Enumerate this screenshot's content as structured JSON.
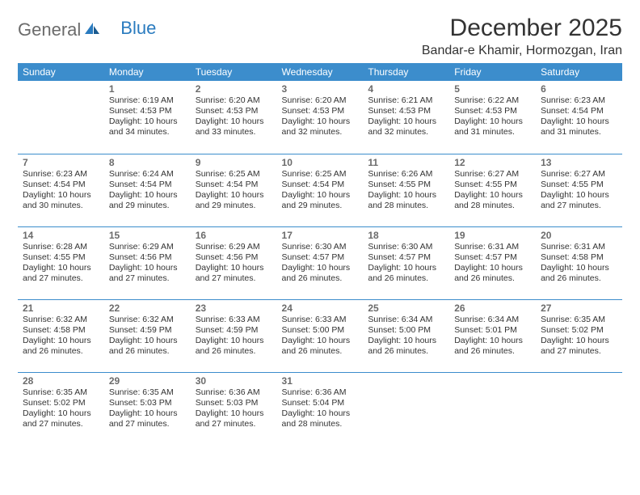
{
  "colors": {
    "header_bg": "#3c8dcc",
    "header_text": "#ffffff",
    "border": "#3c8dcc",
    "daynum": "#6b6b6b",
    "body_text": "#333333",
    "logo_gray": "#6b6b6b",
    "logo_blue": "#2a7bbf",
    "background": "#ffffff"
  },
  "logo": {
    "part1": "General",
    "part2": "Blue"
  },
  "title": "December 2025",
  "location": "Bandar-e Khamir, Hormozgan, Iran",
  "weekdays": [
    "Sunday",
    "Monday",
    "Tuesday",
    "Wednesday",
    "Thursday",
    "Friday",
    "Saturday"
  ],
  "start_offset": 1,
  "days": [
    {
      "n": "1",
      "sunrise": "Sunrise: 6:19 AM",
      "sunset": "Sunset: 4:53 PM",
      "day1": "Daylight: 10 hours",
      "day2": "and 34 minutes."
    },
    {
      "n": "2",
      "sunrise": "Sunrise: 6:20 AM",
      "sunset": "Sunset: 4:53 PM",
      "day1": "Daylight: 10 hours",
      "day2": "and 33 minutes."
    },
    {
      "n": "3",
      "sunrise": "Sunrise: 6:20 AM",
      "sunset": "Sunset: 4:53 PM",
      "day1": "Daylight: 10 hours",
      "day2": "and 32 minutes."
    },
    {
      "n": "4",
      "sunrise": "Sunrise: 6:21 AM",
      "sunset": "Sunset: 4:53 PM",
      "day1": "Daylight: 10 hours",
      "day2": "and 32 minutes."
    },
    {
      "n": "5",
      "sunrise": "Sunrise: 6:22 AM",
      "sunset": "Sunset: 4:53 PM",
      "day1": "Daylight: 10 hours",
      "day2": "and 31 minutes."
    },
    {
      "n": "6",
      "sunrise": "Sunrise: 6:23 AM",
      "sunset": "Sunset: 4:54 PM",
      "day1": "Daylight: 10 hours",
      "day2": "and 31 minutes."
    },
    {
      "n": "7",
      "sunrise": "Sunrise: 6:23 AM",
      "sunset": "Sunset: 4:54 PM",
      "day1": "Daylight: 10 hours",
      "day2": "and 30 minutes."
    },
    {
      "n": "8",
      "sunrise": "Sunrise: 6:24 AM",
      "sunset": "Sunset: 4:54 PM",
      "day1": "Daylight: 10 hours",
      "day2": "and 29 minutes."
    },
    {
      "n": "9",
      "sunrise": "Sunrise: 6:25 AM",
      "sunset": "Sunset: 4:54 PM",
      "day1": "Daylight: 10 hours",
      "day2": "and 29 minutes."
    },
    {
      "n": "10",
      "sunrise": "Sunrise: 6:25 AM",
      "sunset": "Sunset: 4:54 PM",
      "day1": "Daylight: 10 hours",
      "day2": "and 29 minutes."
    },
    {
      "n": "11",
      "sunrise": "Sunrise: 6:26 AM",
      "sunset": "Sunset: 4:55 PM",
      "day1": "Daylight: 10 hours",
      "day2": "and 28 minutes."
    },
    {
      "n": "12",
      "sunrise": "Sunrise: 6:27 AM",
      "sunset": "Sunset: 4:55 PM",
      "day1": "Daylight: 10 hours",
      "day2": "and 28 minutes."
    },
    {
      "n": "13",
      "sunrise": "Sunrise: 6:27 AM",
      "sunset": "Sunset: 4:55 PM",
      "day1": "Daylight: 10 hours",
      "day2": "and 27 minutes."
    },
    {
      "n": "14",
      "sunrise": "Sunrise: 6:28 AM",
      "sunset": "Sunset: 4:55 PM",
      "day1": "Daylight: 10 hours",
      "day2": "and 27 minutes."
    },
    {
      "n": "15",
      "sunrise": "Sunrise: 6:29 AM",
      "sunset": "Sunset: 4:56 PM",
      "day1": "Daylight: 10 hours",
      "day2": "and 27 minutes."
    },
    {
      "n": "16",
      "sunrise": "Sunrise: 6:29 AM",
      "sunset": "Sunset: 4:56 PM",
      "day1": "Daylight: 10 hours",
      "day2": "and 27 minutes."
    },
    {
      "n": "17",
      "sunrise": "Sunrise: 6:30 AM",
      "sunset": "Sunset: 4:57 PM",
      "day1": "Daylight: 10 hours",
      "day2": "and 26 minutes."
    },
    {
      "n": "18",
      "sunrise": "Sunrise: 6:30 AM",
      "sunset": "Sunset: 4:57 PM",
      "day1": "Daylight: 10 hours",
      "day2": "and 26 minutes."
    },
    {
      "n": "19",
      "sunrise": "Sunrise: 6:31 AM",
      "sunset": "Sunset: 4:57 PM",
      "day1": "Daylight: 10 hours",
      "day2": "and 26 minutes."
    },
    {
      "n": "20",
      "sunrise": "Sunrise: 6:31 AM",
      "sunset": "Sunset: 4:58 PM",
      "day1": "Daylight: 10 hours",
      "day2": "and 26 minutes."
    },
    {
      "n": "21",
      "sunrise": "Sunrise: 6:32 AM",
      "sunset": "Sunset: 4:58 PM",
      "day1": "Daylight: 10 hours",
      "day2": "and 26 minutes."
    },
    {
      "n": "22",
      "sunrise": "Sunrise: 6:32 AM",
      "sunset": "Sunset: 4:59 PM",
      "day1": "Daylight: 10 hours",
      "day2": "and 26 minutes."
    },
    {
      "n": "23",
      "sunrise": "Sunrise: 6:33 AM",
      "sunset": "Sunset: 4:59 PM",
      "day1": "Daylight: 10 hours",
      "day2": "and 26 minutes."
    },
    {
      "n": "24",
      "sunrise": "Sunrise: 6:33 AM",
      "sunset": "Sunset: 5:00 PM",
      "day1": "Daylight: 10 hours",
      "day2": "and 26 minutes."
    },
    {
      "n": "25",
      "sunrise": "Sunrise: 6:34 AM",
      "sunset": "Sunset: 5:00 PM",
      "day1": "Daylight: 10 hours",
      "day2": "and 26 minutes."
    },
    {
      "n": "26",
      "sunrise": "Sunrise: 6:34 AM",
      "sunset": "Sunset: 5:01 PM",
      "day1": "Daylight: 10 hours",
      "day2": "and 26 minutes."
    },
    {
      "n": "27",
      "sunrise": "Sunrise: 6:35 AM",
      "sunset": "Sunset: 5:02 PM",
      "day1": "Daylight: 10 hours",
      "day2": "and 27 minutes."
    },
    {
      "n": "28",
      "sunrise": "Sunrise: 6:35 AM",
      "sunset": "Sunset: 5:02 PM",
      "day1": "Daylight: 10 hours",
      "day2": "and 27 minutes."
    },
    {
      "n": "29",
      "sunrise": "Sunrise: 6:35 AM",
      "sunset": "Sunset: 5:03 PM",
      "day1": "Daylight: 10 hours",
      "day2": "and 27 minutes."
    },
    {
      "n": "30",
      "sunrise": "Sunrise: 6:36 AM",
      "sunset": "Sunset: 5:03 PM",
      "day1": "Daylight: 10 hours",
      "day2": "and 27 minutes."
    },
    {
      "n": "31",
      "sunrise": "Sunrise: 6:36 AM",
      "sunset": "Sunset: 5:04 PM",
      "day1": "Daylight: 10 hours",
      "day2": "and 28 minutes."
    }
  ]
}
